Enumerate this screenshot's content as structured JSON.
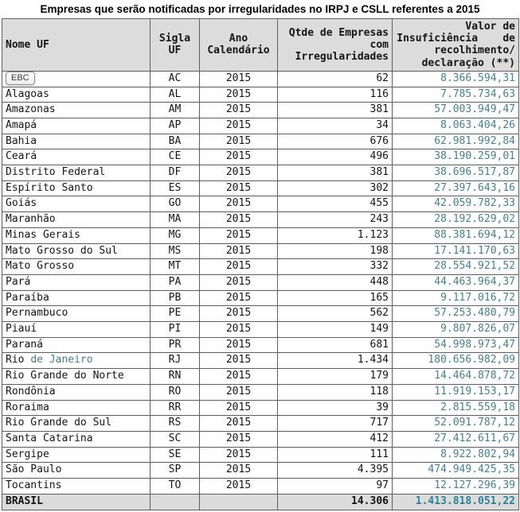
{
  "title": "Empresas que serão notificadas por irregularidades no IRPJ e CSLL referentes a 2015",
  "colors": {
    "money_value_text": "#47808e",
    "total_value_text": "#2e7f96",
    "header_background": "#dcdcdc",
    "grid_border": "#5e5e5e"
  },
  "tooltip": {
    "text": "EBC"
  },
  "header_lines": {
    "col1": [
      "Nome UF"
    ],
    "col2": [
      "Sigla",
      "UF"
    ],
    "col3": [
      "Ano",
      "Calendário"
    ],
    "col4": [
      "Qtde de Empresas",
      "com",
      "Irregularidades"
    ],
    "col5": [
      "Valor de",
      "Insuficiência    de",
      "recolhimento/",
      "declaração (**)"
    ]
  },
  "chart_data": {
    "type": "table",
    "title": "Empresas que serão notificadas por irregularidades no IRPJ e CSLL referentes a 2015",
    "columns": [
      "Nome UF",
      "Sigla UF",
      "Ano Calendário",
      "Qtde de Empresas com Irregularidades",
      "Valor de Insuficiência de recolhimento/declaração (**)"
    ],
    "rows": [
      {
        "nome": "",
        "tooltip": "EBC",
        "sigla": "AC",
        "ano": "2015",
        "qtde": "62",
        "valor": "8.366.594,31"
      },
      {
        "nome": "Alagoas",
        "sigla": "AL",
        "ano": "2015",
        "qtde": "116",
        "valor": "7.785.734,63"
      },
      {
        "nome": "Amazonas",
        "sigla": "AM",
        "ano": "2015",
        "qtde": "381",
        "valor": "57.003.949,47"
      },
      {
        "nome": "Amapá",
        "sigla": "AP",
        "ano": "2015",
        "qtde": "34",
        "valor": "8.063.404,26"
      },
      {
        "nome": "Bahia",
        "sigla": "BA",
        "ano": "2015",
        "qtde": "676",
        "valor": "62.981.992,84"
      },
      {
        "nome": "Ceará",
        "sigla": "CE",
        "ano": "2015",
        "qtde": "496",
        "valor": "38.190.259,01"
      },
      {
        "nome": "Distrito Federal",
        "sigla": "DF",
        "ano": "2015",
        "qtde": "381",
        "valor": "38.696.517,87"
      },
      {
        "nome": "Espírito Santo",
        "sigla": "ES",
        "ano": "2015",
        "qtde": "302",
        "valor": "27.397.643,16"
      },
      {
        "nome": "Goiás",
        "sigla": "GO",
        "ano": "2015",
        "qtde": "455",
        "valor": "42.059.782,33"
      },
      {
        "nome": "Maranhão",
        "sigla": "MA",
        "ano": "2015",
        "qtde": "243",
        "valor": "28.192.629,02"
      },
      {
        "nome": "Minas Gerais",
        "sigla": "MG",
        "ano": "2015",
        "qtde": "1.123",
        "valor": "88.381.694,12"
      },
      {
        "nome": "Mato Grosso do Sul",
        "sigla": "MS",
        "ano": "2015",
        "qtde": "198",
        "valor": "17.141.170,63"
      },
      {
        "nome": "Mato Grosso",
        "sigla": "MT",
        "ano": "2015",
        "qtde": "332",
        "valor": "28.554.921,52"
      },
      {
        "nome": "Pará",
        "sigla": "PA",
        "ano": "2015",
        "qtde": "448",
        "valor": "44.463.964,37"
      },
      {
        "nome": "Paraíba",
        "sigla": "PB",
        "ano": "2015",
        "qtde": "165",
        "valor": "9.117.016,72"
      },
      {
        "nome": "Pernambuco",
        "sigla": "PE",
        "ano": "2015",
        "qtde": "562",
        "valor": "57.253.480,79"
      },
      {
        "nome": "Piauí",
        "sigla": "PI",
        "ano": "2015",
        "qtde": "149",
        "valor": "9.807.826,07"
      },
      {
        "nome": "Paraná",
        "sigla": "PR",
        "ano": "2015",
        "qtde": "681",
        "valor": "54.998.973,47"
      },
      {
        "nome": "Rio ",
        "nome_teal": "de Janeiro",
        "sigla": "RJ",
        "ano": "2015",
        "qtde": "1.434",
        "valor": "180.656.982,09"
      },
      {
        "nome": "Rio Grande do Norte",
        "sigla": "RN",
        "ano": "2015",
        "qtde": "179",
        "valor": "14.464.878,72"
      },
      {
        "nome": "Rondônia",
        "sigla": "RO",
        "ano": "2015",
        "qtde": "118",
        "valor": "11.919.153,17"
      },
      {
        "nome": "Roraima",
        "sigla": "RR",
        "ano": "2015",
        "qtde": "39",
        "valor": "2.815.559,18"
      },
      {
        "nome": "Rio Grande do Sul",
        "sigla": "RS",
        "ano": "2015",
        "qtde": "717",
        "valor": "52.091.787,12"
      },
      {
        "nome": "Santa Catarina",
        "sigla": "SC",
        "ano": "2015",
        "qtde": "412",
        "valor": "27.412.611,67"
      },
      {
        "nome": "Sergipe",
        "sigla": "SE",
        "ano": "2015",
        "qtde": "111",
        "valor": "8.922.802,94"
      },
      {
        "nome": "São Paulo",
        "sigla": "SP",
        "ano": "2015",
        "qtde": "4.395",
        "valor": "474.949.425,35"
      },
      {
        "nome": "Tocantins",
        "sigla": "TO",
        "ano": "2015",
        "qtde": "97",
        "valor": "12.127.296,39"
      }
    ],
    "total": {
      "nome": "BRASIL",
      "sigla": "",
      "ano": "",
      "qtde": "14.306",
      "valor": "1.413.818.051,22"
    }
  }
}
